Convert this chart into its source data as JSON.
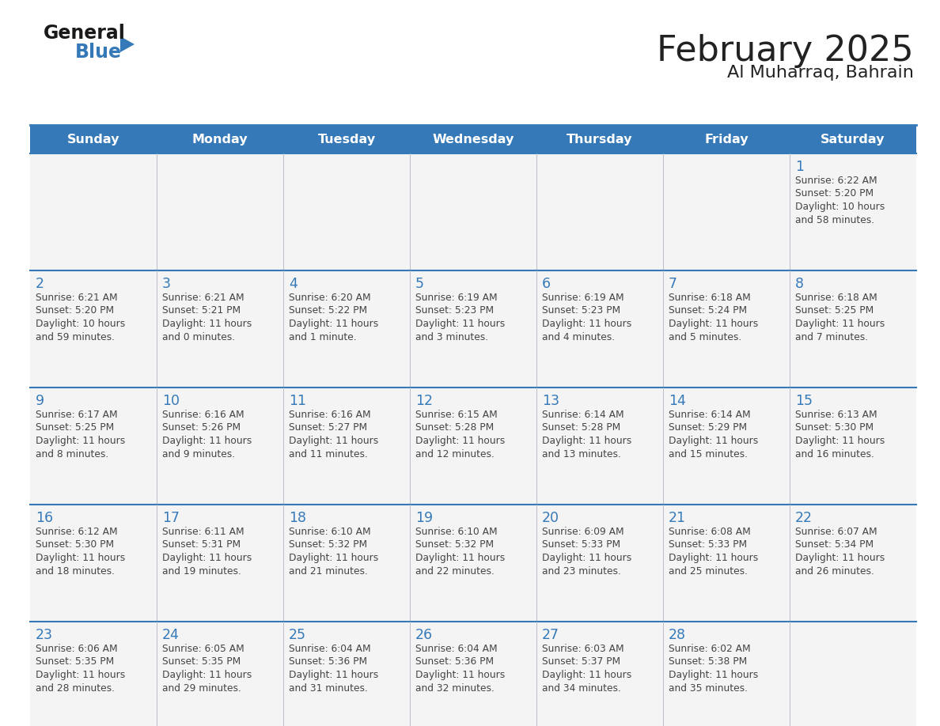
{
  "title": "February 2025",
  "subtitle": "Al Muharraq, Bahrain",
  "header_bg_color": "#3579b8",
  "header_text_color": "#ffffff",
  "day_names": [
    "Sunday",
    "Monday",
    "Tuesday",
    "Wednesday",
    "Thursday",
    "Friday",
    "Saturday"
  ],
  "title_color": "#222222",
  "subtitle_color": "#222222",
  "cell_bg_color": "#f4f4f4",
  "day_number_color": "#3579b8",
  "detail_text_color": "#444444",
  "grid_line_color": "#3579b8",
  "days": [
    {
      "day": 1,
      "col": 6,
      "row": 0,
      "sunrise": "6:22 AM",
      "sunset": "5:20 PM",
      "daylight_h": "10 hours",
      "daylight_m": "and 58 minutes."
    },
    {
      "day": 2,
      "col": 0,
      "row": 1,
      "sunrise": "6:21 AM",
      "sunset": "5:20 PM",
      "daylight_h": "10 hours",
      "daylight_m": "and 59 minutes."
    },
    {
      "day": 3,
      "col": 1,
      "row": 1,
      "sunrise": "6:21 AM",
      "sunset": "5:21 PM",
      "daylight_h": "11 hours",
      "daylight_m": "and 0 minutes."
    },
    {
      "day": 4,
      "col": 2,
      "row": 1,
      "sunrise": "6:20 AM",
      "sunset": "5:22 PM",
      "daylight_h": "11 hours",
      "daylight_m": "and 1 minute."
    },
    {
      "day": 5,
      "col": 3,
      "row": 1,
      "sunrise": "6:19 AM",
      "sunset": "5:23 PM",
      "daylight_h": "11 hours",
      "daylight_m": "and 3 minutes."
    },
    {
      "day": 6,
      "col": 4,
      "row": 1,
      "sunrise": "6:19 AM",
      "sunset": "5:23 PM",
      "daylight_h": "11 hours",
      "daylight_m": "and 4 minutes."
    },
    {
      "day": 7,
      "col": 5,
      "row": 1,
      "sunrise": "6:18 AM",
      "sunset": "5:24 PM",
      "daylight_h": "11 hours",
      "daylight_m": "and 5 minutes."
    },
    {
      "day": 8,
      "col": 6,
      "row": 1,
      "sunrise": "6:18 AM",
      "sunset": "5:25 PM",
      "daylight_h": "11 hours",
      "daylight_m": "and 7 minutes."
    },
    {
      "day": 9,
      "col": 0,
      "row": 2,
      "sunrise": "6:17 AM",
      "sunset": "5:25 PM",
      "daylight_h": "11 hours",
      "daylight_m": "and 8 minutes."
    },
    {
      "day": 10,
      "col": 1,
      "row": 2,
      "sunrise": "6:16 AM",
      "sunset": "5:26 PM",
      "daylight_h": "11 hours",
      "daylight_m": "and 9 minutes."
    },
    {
      "day": 11,
      "col": 2,
      "row": 2,
      "sunrise": "6:16 AM",
      "sunset": "5:27 PM",
      "daylight_h": "11 hours",
      "daylight_m": "and 11 minutes."
    },
    {
      "day": 12,
      "col": 3,
      "row": 2,
      "sunrise": "6:15 AM",
      "sunset": "5:28 PM",
      "daylight_h": "11 hours",
      "daylight_m": "and 12 minutes."
    },
    {
      "day": 13,
      "col": 4,
      "row": 2,
      "sunrise": "6:14 AM",
      "sunset": "5:28 PM",
      "daylight_h": "11 hours",
      "daylight_m": "and 13 minutes."
    },
    {
      "day": 14,
      "col": 5,
      "row": 2,
      "sunrise": "6:14 AM",
      "sunset": "5:29 PM",
      "daylight_h": "11 hours",
      "daylight_m": "and 15 minutes."
    },
    {
      "day": 15,
      "col": 6,
      "row": 2,
      "sunrise": "6:13 AM",
      "sunset": "5:30 PM",
      "daylight_h": "11 hours",
      "daylight_m": "and 16 minutes."
    },
    {
      "day": 16,
      "col": 0,
      "row": 3,
      "sunrise": "6:12 AM",
      "sunset": "5:30 PM",
      "daylight_h": "11 hours",
      "daylight_m": "and 18 minutes."
    },
    {
      "day": 17,
      "col": 1,
      "row": 3,
      "sunrise": "6:11 AM",
      "sunset": "5:31 PM",
      "daylight_h": "11 hours",
      "daylight_m": "and 19 minutes."
    },
    {
      "day": 18,
      "col": 2,
      "row": 3,
      "sunrise": "6:10 AM",
      "sunset": "5:32 PM",
      "daylight_h": "11 hours",
      "daylight_m": "and 21 minutes."
    },
    {
      "day": 19,
      "col": 3,
      "row": 3,
      "sunrise": "6:10 AM",
      "sunset": "5:32 PM",
      "daylight_h": "11 hours",
      "daylight_m": "and 22 minutes."
    },
    {
      "day": 20,
      "col": 4,
      "row": 3,
      "sunrise": "6:09 AM",
      "sunset": "5:33 PM",
      "daylight_h": "11 hours",
      "daylight_m": "and 23 minutes."
    },
    {
      "day": 21,
      "col": 5,
      "row": 3,
      "sunrise": "6:08 AM",
      "sunset": "5:33 PM",
      "daylight_h": "11 hours",
      "daylight_m": "and 25 minutes."
    },
    {
      "day": 22,
      "col": 6,
      "row": 3,
      "sunrise": "6:07 AM",
      "sunset": "5:34 PM",
      "daylight_h": "11 hours",
      "daylight_m": "and 26 minutes."
    },
    {
      "day": 23,
      "col": 0,
      "row": 4,
      "sunrise": "6:06 AM",
      "sunset": "5:35 PM",
      "daylight_h": "11 hours",
      "daylight_m": "and 28 minutes."
    },
    {
      "day": 24,
      "col": 1,
      "row": 4,
      "sunrise": "6:05 AM",
      "sunset": "5:35 PM",
      "daylight_h": "11 hours",
      "daylight_m": "and 29 minutes."
    },
    {
      "day": 25,
      "col": 2,
      "row": 4,
      "sunrise": "6:04 AM",
      "sunset": "5:36 PM",
      "daylight_h": "11 hours",
      "daylight_m": "and 31 minutes."
    },
    {
      "day": 26,
      "col": 3,
      "row": 4,
      "sunrise": "6:04 AM",
      "sunset": "5:36 PM",
      "daylight_h": "11 hours",
      "daylight_m": "and 32 minutes."
    },
    {
      "day": 27,
      "col": 4,
      "row": 4,
      "sunrise": "6:03 AM",
      "sunset": "5:37 PM",
      "daylight_h": "11 hours",
      "daylight_m": "and 34 minutes."
    },
    {
      "day": 28,
      "col": 5,
      "row": 4,
      "sunrise": "6:02 AM",
      "sunset": "5:38 PM",
      "daylight_h": "11 hours",
      "daylight_m": "and 35 minutes."
    }
  ]
}
